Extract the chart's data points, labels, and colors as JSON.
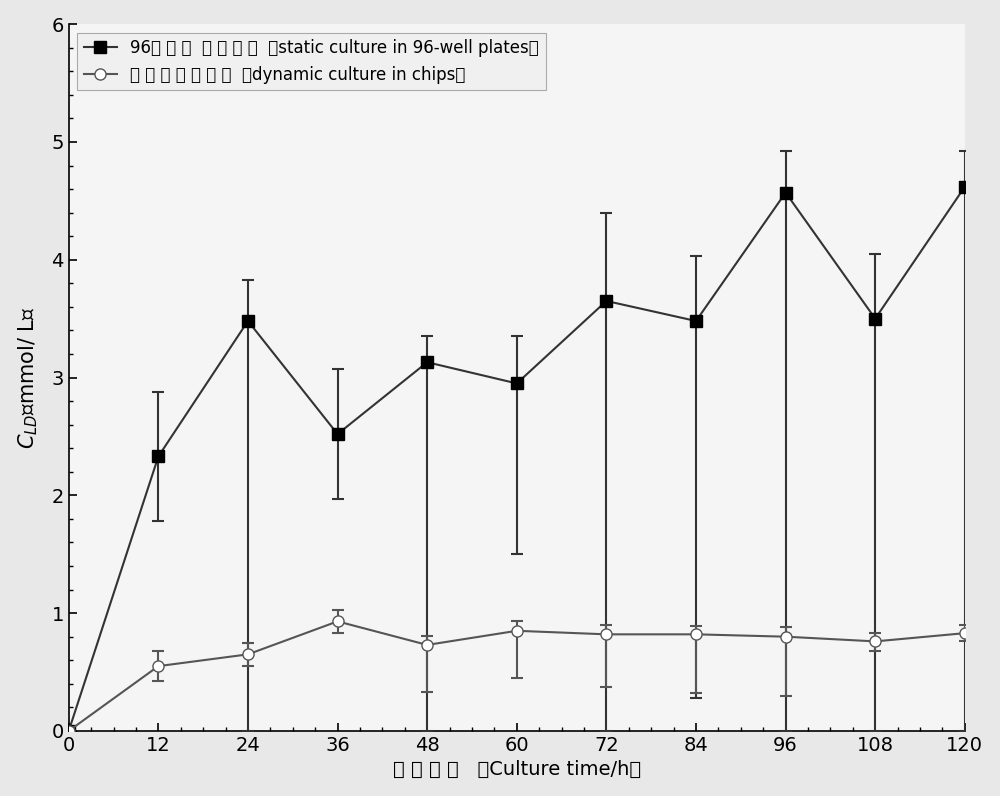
{
  "x": [
    0,
    12,
    24,
    36,
    48,
    60,
    72,
    84,
    96,
    108,
    120
  ],
  "static_y": [
    0,
    2.33,
    3.48,
    2.52,
    3.13,
    2.95,
    3.65,
    3.48,
    4.57,
    3.5,
    4.62
  ],
  "static_yerr_upper": [
    0,
    0.55,
    0.35,
    0.55,
    0.22,
    0.4,
    0.75,
    0.55,
    0.35,
    0.55,
    0.3
  ],
  "static_yerr_lower": [
    0,
    0.55,
    3.48,
    0.55,
    3.13,
    1.45,
    3.65,
    3.2,
    4.57,
    3.5,
    4.62
  ],
  "dynamic_y": [
    0,
    0.55,
    0.65,
    0.93,
    0.73,
    0.85,
    0.82,
    0.82,
    0.8,
    0.76,
    0.83
  ],
  "dynamic_yerr_upper": [
    0,
    0.13,
    0.1,
    0.1,
    0.08,
    0.08,
    0.08,
    0.07,
    0.08,
    0.07,
    0.07
  ],
  "dynamic_yerr_lower": [
    0,
    0.13,
    0.1,
    0.1,
    0.4,
    0.4,
    0.45,
    0.5,
    0.5,
    0.08,
    0.07
  ],
  "ylim": [
    0,
    6
  ],
  "xlim": [
    0,
    120
  ],
  "yticks": [
    0,
    1,
    2,
    3,
    4,
    5,
    6
  ],
  "xticks": [
    0,
    12,
    24,
    36,
    48,
    60,
    72,
    84,
    96,
    108,
    120
  ],
  "line_color_static": "#333333",
  "line_color_dynamic": "#555555",
  "bg_color": "#e8e8e8",
  "plot_bg_color": "#f5f5f5"
}
